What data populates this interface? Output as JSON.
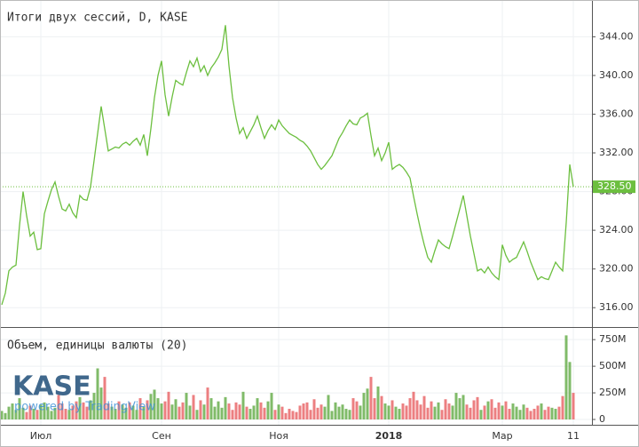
{
  "chart_data": [
    {
      "type": "line",
      "title": "Итоги двух сессий, D, KASE",
      "categories": [
        null,
        null,
        null,
        null,
        null,
        null,
        null,
        null,
        null,
        null,
        null,
        "Июл",
        null,
        null,
        null,
        null,
        null,
        null,
        null,
        null,
        null,
        null,
        null,
        null,
        null,
        null,
        null,
        null,
        null,
        null,
        null,
        null,
        null,
        null,
        null,
        null,
        null,
        null,
        null,
        null,
        null,
        null,
        null,
        null,
        null,
        "Сен",
        null,
        null,
        null,
        null,
        null,
        null,
        null,
        null,
        null,
        null,
        null,
        null,
        null,
        null,
        null,
        null,
        null,
        null,
        null,
        null,
        null,
        null,
        null,
        null,
        null,
        null,
        null,
        null,
        null,
        null,
        null,
        null,
        "Ноя",
        null,
        null,
        null,
        null,
        null,
        null,
        null,
        null,
        null,
        null,
        null,
        null,
        null,
        null,
        null,
        null,
        null,
        null,
        null,
        null,
        null,
        null,
        null,
        null,
        null,
        null,
        null,
        null,
        null,
        null,
        "2018",
        null,
        null,
        null,
        null,
        null,
        null,
        null,
        null,
        null,
        null,
        null,
        null,
        null,
        null,
        null,
        null,
        null,
        null,
        null,
        null,
        null,
        null,
        null,
        null,
        null,
        null,
        null,
        null,
        null,
        null,
        null,
        "Мар",
        null,
        null,
        null,
        null,
        null,
        null,
        null,
        null,
        null,
        null,
        null,
        null,
        null,
        null,
        null,
        null,
        null,
        null,
        null,
        "11"
      ],
      "values": [
        316.3,
        317.5,
        319.8,
        320.2,
        320.4,
        324.5,
        328.0,
        325.5,
        323.4,
        323.8,
        322.0,
        322.1,
        325.7,
        327.0,
        328.2,
        329.0,
        327.5,
        326.2,
        326.0,
        326.7,
        325.8,
        325.3,
        327.6,
        327.2,
        327.1,
        328.5,
        331.2,
        334.0,
        336.8,
        334.5,
        332.2,
        332.4,
        332.6,
        332.5,
        332.9,
        333.1,
        332.8,
        333.2,
        333.5,
        332.8,
        333.9,
        331.7,
        334.5,
        337.7,
        340.0,
        341.5,
        338.0,
        335.8,
        337.8,
        339.5,
        339.2,
        339.0,
        340.3,
        341.5,
        340.9,
        341.8,
        340.4,
        341.0,
        340.0,
        340.8,
        341.3,
        341.9,
        342.7,
        345.2,
        341.0,
        337.7,
        335.6,
        334.0,
        334.6,
        333.5,
        334.2,
        334.9,
        335.8,
        334.6,
        333.5,
        334.3,
        334.9,
        334.4,
        335.4,
        334.8,
        334.4,
        334.0,
        333.8,
        333.6,
        333.3,
        333.1,
        332.7,
        332.2,
        331.5,
        330.8,
        330.3,
        330.7,
        331.2,
        331.7,
        332.6,
        333.5,
        334.1,
        334.8,
        335.4,
        335.0,
        334.9,
        335.6,
        335.8,
        336.1,
        333.8,
        331.7,
        332.5,
        331.2,
        332.0,
        333.1,
        330.3,
        330.6,
        330.8,
        330.5,
        330.0,
        329.4,
        327.5,
        325.7,
        324.0,
        322.5,
        321.2,
        320.7,
        321.9,
        323.0,
        322.6,
        322.3,
        322.1,
        323.4,
        324.8,
        326.2,
        327.6,
        325.5,
        323.4,
        321.6,
        319.8,
        320.0,
        319.6,
        320.2,
        319.6,
        319.2,
        318.9,
        322.5,
        321.4,
        320.7,
        321.0,
        321.2,
        322.0,
        322.8,
        321.8,
        320.7,
        319.8,
        318.9,
        319.2,
        319.0,
        318.9,
        319.8,
        320.7,
        320.2,
        319.8,
        324.8,
        330.8,
        328.5
      ],
      "color": "#6cbf3f",
      "ylim": [
        314,
        347.8
      ],
      "yticks": [
        {
          "value": 316,
          "label": "316.00"
        },
        {
          "value": 320,
          "label": "320.00"
        },
        {
          "value": 324,
          "label": "324.00"
        },
        {
          "value": 328,
          "label": "328.00"
        },
        {
          "value": 332,
          "label": "332.00"
        },
        {
          "value": 336,
          "label": "336.00"
        },
        {
          "value": 340,
          "label": "340.00"
        },
        {
          "value": 344,
          "label": "344.00"
        }
      ],
      "last_price": {
        "value": 328.5,
        "label": "328.50"
      },
      "grid": true
    },
    {
      "type": "bar",
      "title": "Объем, единицы валюты (20)",
      "values": [
        80000000.0,
        60000000.0,
        120000000.0,
        150000000.0,
        90000000.0,
        200000000.0,
        110000000.0,
        70000000.0,
        130000000.0,
        100000000.0,
        90000000.0,
        140000000.0,
        160000000.0,
        120000000.0,
        80000000.0,
        110000000.0,
        230000000.0,
        150000000.0,
        100000000.0,
        90000000.0,
        130000000.0,
        170000000.0,
        210000000.0,
        160000000.0,
        120000000.0,
        180000000.0,
        250000000.0,
        480000000.0,
        300000000.0,
        400000000.0,
        150000000.0,
        120000000.0,
        100000000.0,
        170000000.0,
        140000000.0,
        110000000.0,
        160000000.0,
        130000000.0,
        90000000.0,
        200000000.0,
        120000000.0,
        180000000.0,
        240000000.0,
        280000000.0,
        200000000.0,
        150000000.0,
        170000000.0,
        260000000.0,
        140000000.0,
        190000000.0,
        120000000.0,
        160000000.0,
        250000000.0,
        130000000.0,
        230000000.0,
        90000000.0,
        180000000.0,
        140000000.0,
        300000000.0,
        200000000.0,
        120000000.0,
        170000000.0,
        110000000.0,
        210000000.0,
        150000000.0,
        90000000.0,
        160000000.0,
        140000000.0,
        260000000.0,
        120000000.0,
        100000000.0,
        130000000.0,
        200000000.0,
        160000000.0,
        110000000.0,
        170000000.0,
        250000000.0,
        90000000.0,
        140000000.0,
        120000000.0,
        60000000.0,
        100000000.0,
        80000000.0,
        70000000.0,
        130000000.0,
        150000000.0,
        160000000.0,
        90000000.0,
        190000000.0,
        110000000.0,
        140000000.0,
        120000000.0,
        230000000.0,
        80000000.0,
        160000000.0,
        120000000.0,
        140000000.0,
        100000000.0,
        90000000.0,
        200000000.0,
        170000000.0,
        130000000.0,
        250000000.0,
        290000000.0,
        400000000.0,
        200000000.0,
        310000000.0,
        220000000.0,
        150000000.0,
        130000000.0,
        180000000.0,
        120000000.0,
        100000000.0,
        150000000.0,
        130000000.0,
        200000000.0,
        260000000.0,
        180000000.0,
        140000000.0,
        220000000.0,
        110000000.0,
        170000000.0,
        120000000.0,
        160000000.0,
        90000000.0,
        190000000.0,
        150000000.0,
        130000000.0,
        250000000.0,
        200000000.0,
        230000000.0,
        140000000.0,
        110000000.0,
        180000000.0,
        210000000.0,
        90000000.0,
        130000000.0,
        170000000.0,
        190000000.0,
        110000000.0,
        160000000.0,
        130000000.0,
        170000000.0,
        100000000.0,
        150000000.0,
        120000000.0,
        90000000.0,
        140000000.0,
        110000000.0,
        80000000.0,
        100000000.0,
        130000000.0,
        150000000.0,
        90000000.0,
        120000000.0,
        110000000.0,
        100000000.0,
        120000000.0,
        220000000.0,
        790000000.0,
        540000000.0,
        250000000.0
      ],
      "up_color": "#6aaf4f",
      "down_color": "#e9696b",
      "ylim": [
        -50000000.0,
        860000000.0
      ],
      "yticks": [
        0,
        {
          "value": 250000000.0,
          "label": "250M"
        },
        {
          "value": 500000000.0,
          "label": "500M"
        },
        {
          "value": 750000000.0,
          "label": "750M"
        }
      ]
    }
  ],
  "watermark": {
    "logo": "KASE",
    "powered": "powered by TradingView"
  }
}
